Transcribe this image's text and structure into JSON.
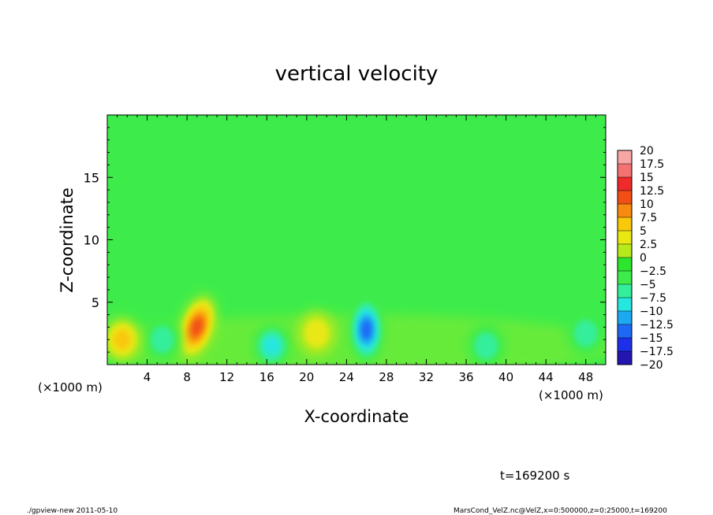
{
  "chart_data": {
    "type": "heatmap",
    "title": "vertical velocity",
    "xlabel": "X-coordinate",
    "ylabel": "Z-coordinate",
    "x_unit_left": "(×1000 m)",
    "x_unit_right": "(×1000 m)",
    "xlim": [
      0,
      50
    ],
    "ylim": [
      0,
      20
    ],
    "x_ticks": [
      4,
      8,
      12,
      16,
      20,
      24,
      28,
      32,
      36,
      40,
      44,
      48
    ],
    "y_ticks": [
      5,
      10,
      15
    ],
    "colorbar": {
      "labels": [
        "20",
        "17.5",
        "15",
        "12.5",
        "10",
        "7.5",
        "5",
        "2.5",
        "0",
        "−2.5",
        "−5",
        "−7.5",
        "−10",
        "−12.5",
        "−15",
        "−17.5",
        "−20"
      ],
      "colors": [
        "#f7a6a6",
        "#f37373",
        "#ef2a2a",
        "#f24f14",
        "#f78a0f",
        "#f9c80a",
        "#e9e812",
        "#b7ea1a",
        "#2ce52d",
        "#3dec4b",
        "#34ee9b",
        "#26e6e0",
        "#1ca9f2",
        "#1d69f5",
        "#1b30e8",
        "#2215b0",
        "#5e10b0"
      ]
    },
    "background_value": 0,
    "features": [
      {
        "x": 9,
        "z": 3,
        "sign": "positive",
        "peak": 12.5
      },
      {
        "x": 26,
        "z": 2.8,
        "sign": "negative",
        "peak": -12.5
      },
      {
        "x": 16.5,
        "z": 1.5,
        "sign": "negative",
        "peak": -7.5
      },
      {
        "x": 5.5,
        "z": 2,
        "sign": "negative",
        "peak": -5
      },
      {
        "x": 1.5,
        "z": 2,
        "sign": "positive",
        "peak": 7.5
      },
      {
        "x": 21,
        "z": 2.5,
        "sign": "positive",
        "peak": 5
      },
      {
        "x": 38,
        "z": 1.5,
        "sign": "negative",
        "peak": -5
      },
      {
        "x": 48,
        "z": 2.5,
        "sign": "negative",
        "peak": -5
      }
    ]
  },
  "annotation": {
    "time": "t=169200 s",
    "footer_left": "./gpview-new   2011-05-10",
    "footer_right": "MarsCond_VelZ.nc@VelZ,x=0:500000,z=0:25000,t=169200"
  }
}
